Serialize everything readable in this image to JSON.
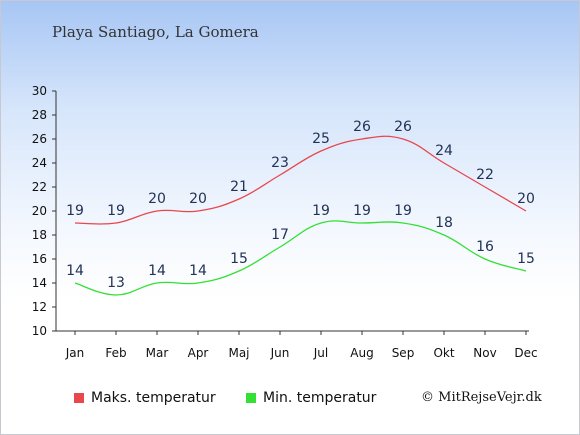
{
  "chart_data": {
    "type": "line",
    "title": "Playa Santiago, La Gomera",
    "categories": [
      "Jan",
      "Feb",
      "Mar",
      "Apr",
      "Maj",
      "Jun",
      "Jul",
      "Aug",
      "Sep",
      "Okt",
      "Nov",
      "Dec"
    ],
    "series": [
      {
        "name": "Maks. temperatur",
        "color": "#e8474c",
        "values": [
          19,
          19,
          20,
          20,
          21,
          23,
          25,
          26,
          26,
          24,
          22,
          20
        ]
      },
      {
        "name": "Min. temperatur",
        "color": "#33e033",
        "values": [
          14,
          13,
          14,
          14,
          15,
          17,
          19,
          19,
          19,
          18,
          16,
          15
        ]
      }
    ],
    "ylim": [
      10,
      30
    ],
    "yticks": [
      10,
      12,
      14,
      16,
      18,
      20,
      22,
      24,
      26,
      28,
      30
    ],
    "grid": false,
    "legend_position": "bottom-left"
  },
  "copyright": "© MitRejseVejr.dk"
}
